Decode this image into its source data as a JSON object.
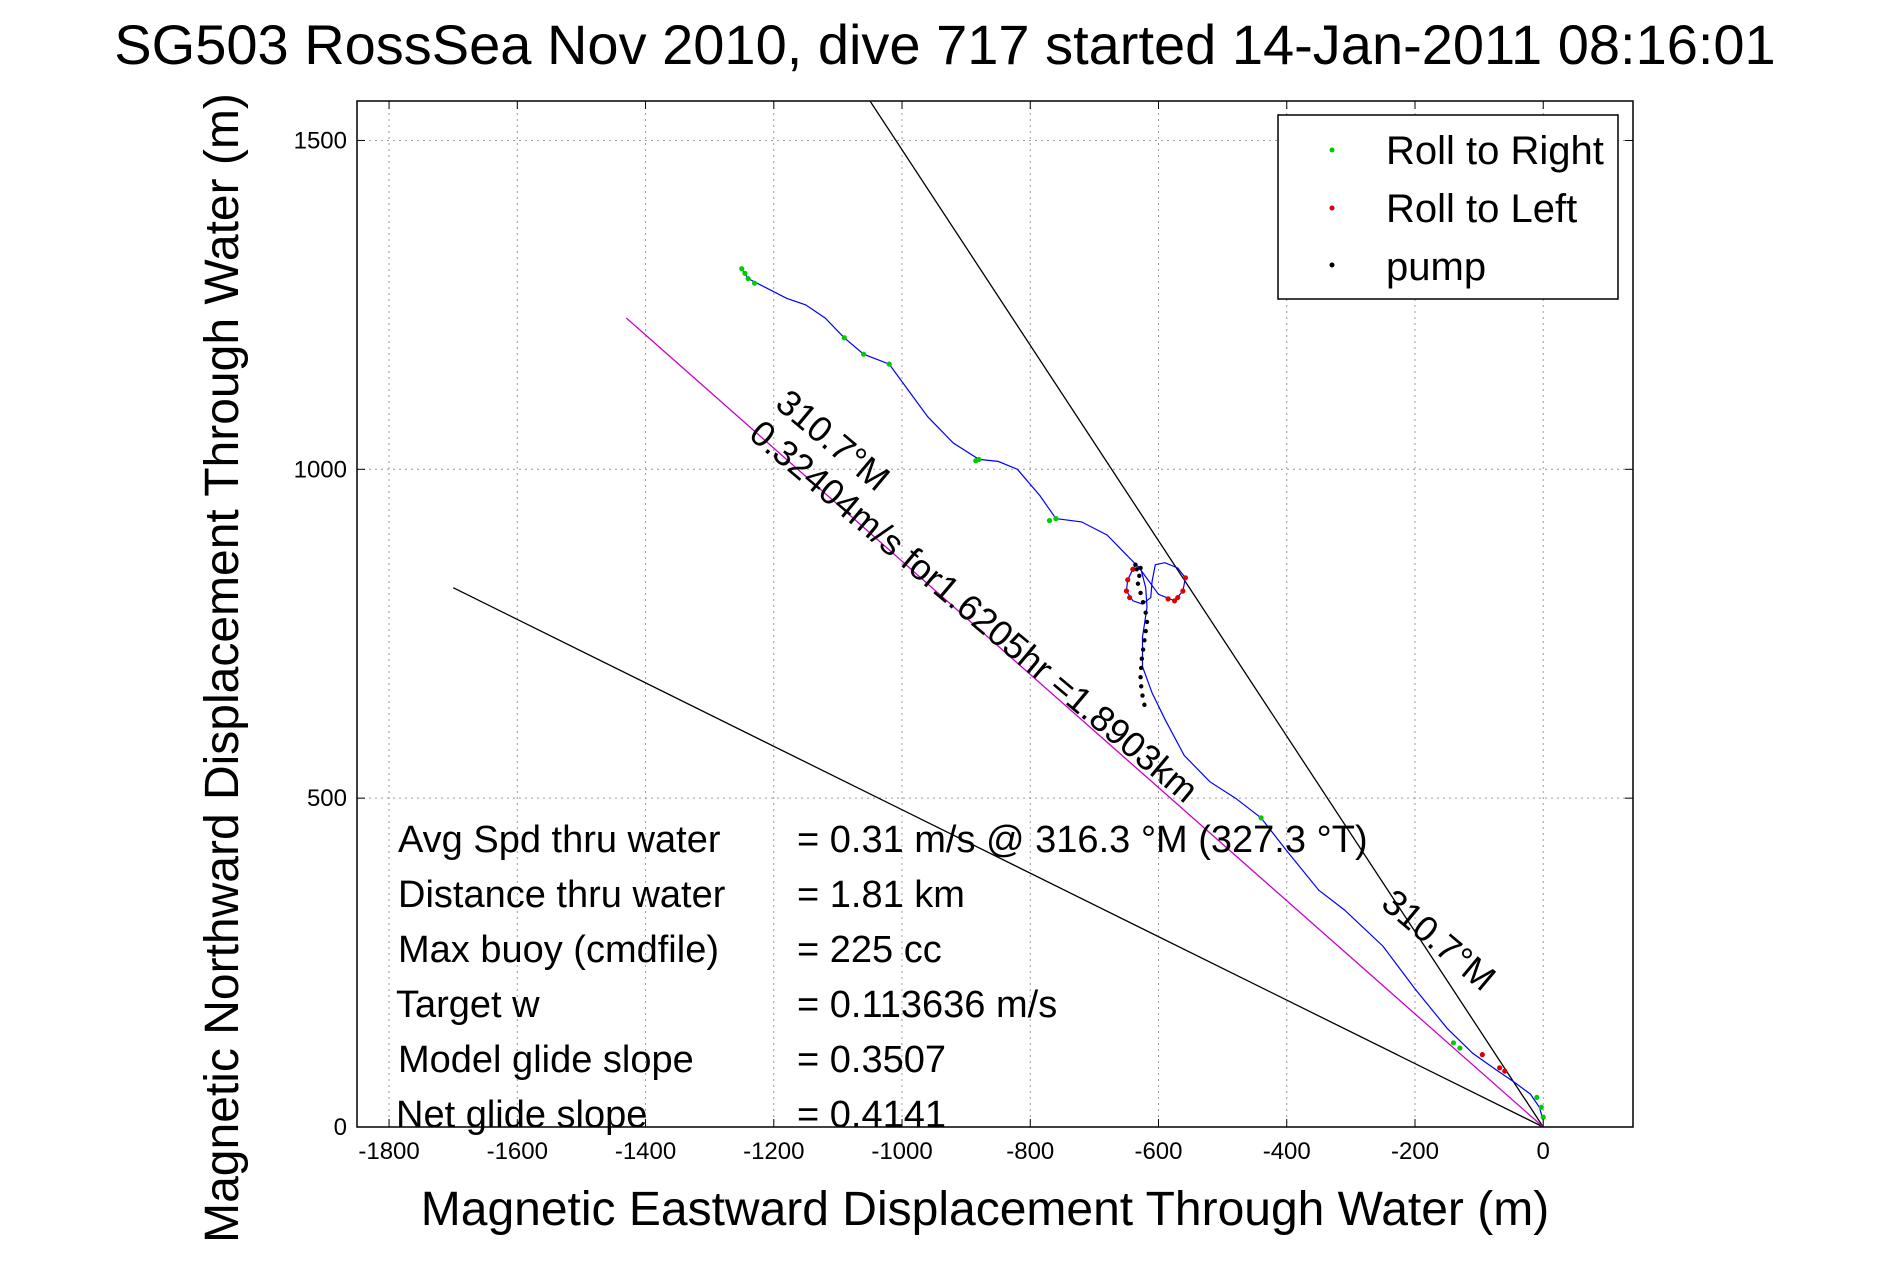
{
  "chart_data": {
    "type": "scatter",
    "title": "SG503 RossSea Nov 2010, dive 717 started 14-Jan-2011 08:16:01",
    "xlabel": "Magnetic Eastward Displacement Through Water (m)",
    "ylabel": "Magnetic Northward Displacement Through Water (m)",
    "xlim": [
      -1850,
      140
    ],
    "ylim": [
      0,
      1560
    ],
    "xticks": [
      -1800,
      -1600,
      -1400,
      -1200,
      -1000,
      -800,
      -600,
      -400,
      -200,
      0
    ],
    "yticks": [
      0,
      500,
      1000,
      1500
    ],
    "grid": true,
    "legend": {
      "placement": "top-right",
      "entries": [
        {
          "label": "Roll to Right",
          "color": "#00cc00"
        },
        {
          "label": "Roll to Left",
          "color": "#e00000"
        },
        {
          "label": "pump",
          "color": "#000000"
        }
      ]
    },
    "track": {
      "color": "#0000ff",
      "points": [
        [
          0,
          10
        ],
        [
          -6,
          30
        ],
        [
          -20,
          50
        ],
        [
          -45,
          68
        ],
        [
          -75,
          88
        ],
        [
          -110,
          112
        ],
        [
          -150,
          150
        ],
        [
          -200,
          210
        ],
        [
          -250,
          275
        ],
        [
          -310,
          330
        ],
        [
          -350,
          360
        ],
        [
          -400,
          420
        ],
        [
          -440,
          470
        ],
        [
          -480,
          500
        ],
        [
          -520,
          525
        ],
        [
          -560,
          565
        ],
        [
          -590,
          620
        ],
        [
          -610,
          660
        ],
        [
          -625,
          700
        ],
        [
          -625,
          745
        ],
        [
          -618,
          790
        ],
        [
          -620,
          820
        ],
        [
          -628,
          850
        ],
        [
          -636,
          855
        ],
        [
          -640,
          848
        ],
        [
          -648,
          832
        ],
        [
          -650,
          815
        ],
        [
          -640,
          800
        ],
        [
          -625,
          795
        ],
        [
          -612,
          805
        ],
        [
          -610,
          830
        ],
        [
          -605,
          855
        ],
        [
          -590,
          858
        ],
        [
          -570,
          850
        ],
        [
          -558,
          835
        ],
        [
          -562,
          815
        ],
        [
          -575,
          800
        ],
        [
          -600,
          810
        ],
        [
          -630,
          850
        ],
        [
          -650,
          870
        ],
        [
          -680,
          900
        ],
        [
          -720,
          920
        ],
        [
          -760,
          925
        ],
        [
          -785,
          960
        ],
        [
          -820,
          1000
        ],
        [
          -850,
          1012
        ],
        [
          -880,
          1015
        ],
        [
          -920,
          1040
        ],
        [
          -960,
          1080
        ],
        [
          -990,
          1120
        ],
        [
          -1020,
          1160
        ],
        [
          -1060,
          1175
        ],
        [
          -1090,
          1200
        ],
        [
          -1120,
          1230
        ],
        [
          -1150,
          1250
        ],
        [
          -1180,
          1260
        ],
        [
          -1220,
          1280
        ],
        [
          -1240,
          1290
        ],
        [
          -1250,
          1305
        ]
      ]
    },
    "roll_right_points": [
      [
        0,
        15
      ],
      [
        -3,
        30
      ],
      [
        -10,
        45
      ],
      [
        -440,
        470
      ],
      [
        -1020,
        1160
      ],
      [
        -1060,
        1175
      ],
      [
        -1090,
        1200
      ],
      [
        -880,
        1015
      ],
      [
        -885,
        1013
      ],
      [
        -760,
        925
      ],
      [
        -770,
        922
      ],
      [
        -1240,
        1290
      ],
      [
        -1245,
        1298
      ],
      [
        -1250,
        1305
      ],
      [
        -1230,
        1283
      ],
      [
        -130,
        120
      ],
      [
        -140,
        128
      ]
    ],
    "roll_left_points": [
      [
        -60,
        85
      ],
      [
        -68,
        90
      ],
      [
        -95,
        110
      ],
      [
        -640,
        848
      ],
      [
        -648,
        832
      ],
      [
        -650,
        815
      ],
      [
        -645,
        805
      ],
      [
        -558,
        835
      ],
      [
        -562,
        815
      ],
      [
        -570,
        805
      ],
      [
        -575,
        800
      ],
      [
        -585,
        803
      ]
    ],
    "pump_points": [
      [
        -628,
        850
      ],
      [
        -630,
        838
      ],
      [
        -632,
        826
      ],
      [
        -628,
        812
      ],
      [
        -624,
        798
      ],
      [
        -620,
        782
      ],
      [
        -618,
        768
      ],
      [
        -620,
        754
      ],
      [
        -622,
        740
      ],
      [
        -624,
        726
      ],
      [
        -626,
        712
      ],
      [
        -627,
        698
      ],
      [
        -628,
        684
      ],
      [
        -627,
        670
      ],
      [
        -625,
        656
      ],
      [
        -622,
        642
      ],
      [
        -634,
        848
      ],
      [
        -636,
        855
      ]
    ],
    "reference_lines": [
      {
        "name": "heading-line-upper",
        "points": [
          [
            0,
            0
          ],
          [
            -1050,
            1560
          ]
        ],
        "color": "#000000"
      },
      {
        "name": "heading-line-lower",
        "points": [
          [
            0,
            0
          ],
          [
            -1700,
            820
          ]
        ],
        "color": "#000000"
      },
      {
        "name": "course-line",
        "points": [
          [
            0,
            0
          ],
          [
            -1430,
            1230
          ]
        ],
        "color": "#cc00cc"
      }
    ],
    "annotations": [
      {
        "text": "310.7°M",
        "at": [
          -1120,
          1030
        ],
        "rotate_deg": -140
      },
      {
        "text": "0.32404m/s for1.6205hr =1.8903km",
        "at": [
          -900,
          770
        ],
        "rotate_deg": -140
      },
      {
        "text": "310.7°M",
        "at": [
          -175,
          270
        ],
        "rotate_deg": -140
      }
    ]
  },
  "stats": [
    {
      "label": "Avg Spd thru water",
      "value": "=  0.31 m/s @ 316.3 °M (327.3 °T)"
    },
    {
      "label": "Distance thru water",
      "value": "=  1.81 km"
    },
    {
      "label": "Max buoy (cmdfile)",
      "value": "= 225 cc"
    },
    {
      "label": "Target w",
      "value": "= 0.113636 m/s"
    },
    {
      "label": "Model glide slope",
      "value": "= 0.3507"
    },
    {
      "label": "Net glide slope",
      "value": "= 0.4141"
    }
  ]
}
